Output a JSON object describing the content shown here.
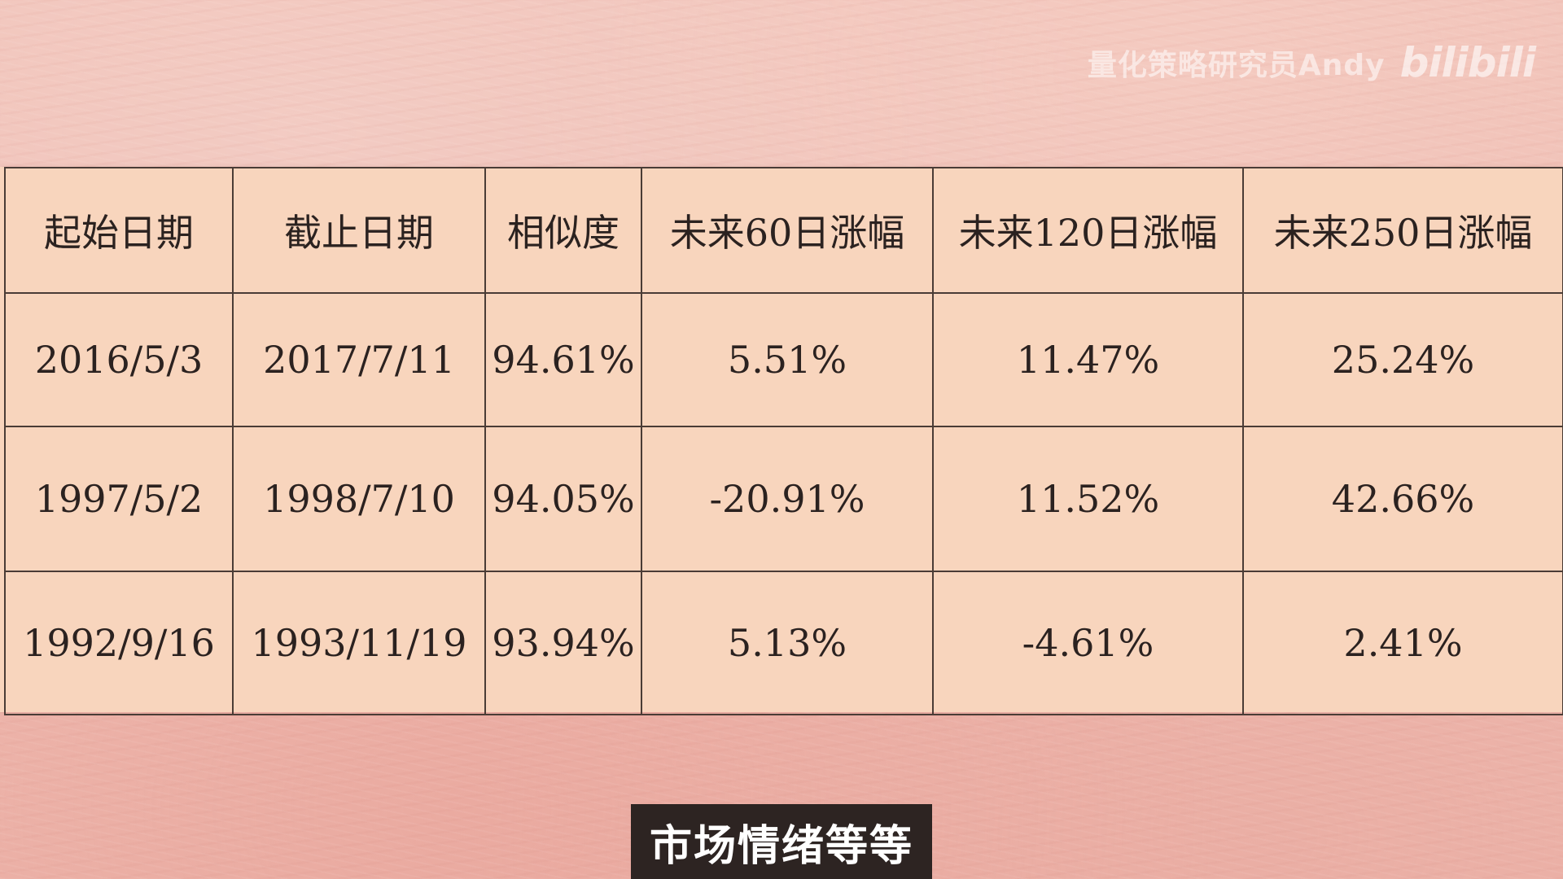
{
  "watermark": {
    "text": "量化策略研究员Andy",
    "logo": "bilibili"
  },
  "table": {
    "headers": [
      "起始日期",
      "截止日期",
      "相似度",
      "未来60日涨幅",
      "未来120日涨幅",
      "未来250日涨幅"
    ],
    "rows": [
      [
        "2016/5/3",
        "2017/7/11",
        "94.61%",
        "5.51%",
        "11.47%",
        "25.24%"
      ],
      [
        "1997/5/2",
        "1998/7/10",
        "94.05%",
        "-20.91%",
        "11.52%",
        "42.66%"
      ],
      [
        "1992/9/16",
        "1993/11/19",
        "93.94%",
        "5.13%",
        "-4.61%",
        "2.41%"
      ]
    ]
  },
  "subtitle": {
    "text": "市场情绪等等"
  },
  "colors": {
    "background": "#efbdb3",
    "table_bg": "#f8d5bd",
    "border": "#4a3c36",
    "subtitle_bg": "#2d2422"
  }
}
